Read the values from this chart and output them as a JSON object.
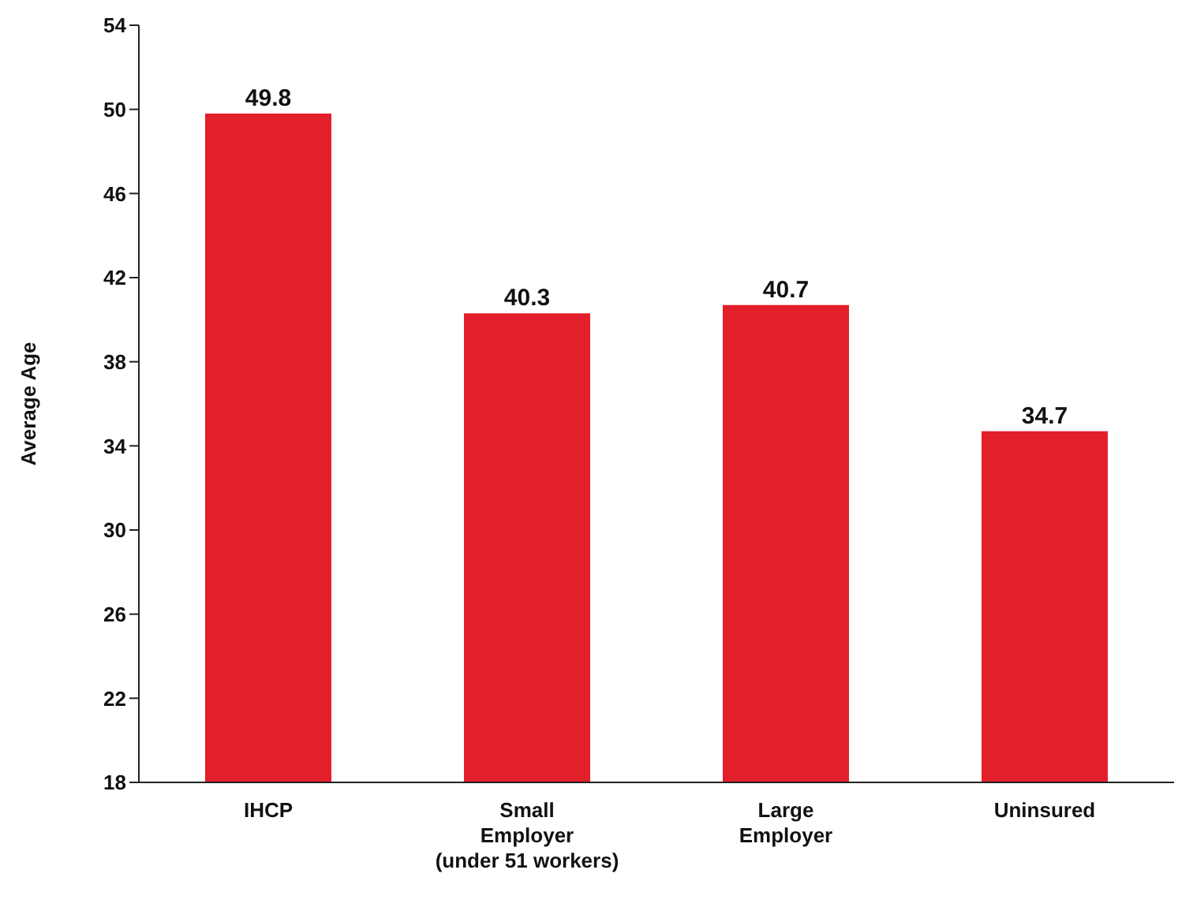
{
  "chart_data": {
    "type": "bar",
    "ylabel": "Average Age",
    "categories": [
      "IHCP",
      "Small\nEmployer\n(under 51 workers)",
      "Large\nEmployer",
      "Uninsured"
    ],
    "values": [
      49.8,
      40.3,
      40.7,
      34.7
    ],
    "color": "#e21f2b",
    "ylim": [
      18,
      54
    ],
    "yticks": [
      18,
      22,
      26,
      30,
      34,
      38,
      42,
      46,
      50,
      54
    ],
    "grid": false,
    "data_labels": true,
    "legend": false
  }
}
